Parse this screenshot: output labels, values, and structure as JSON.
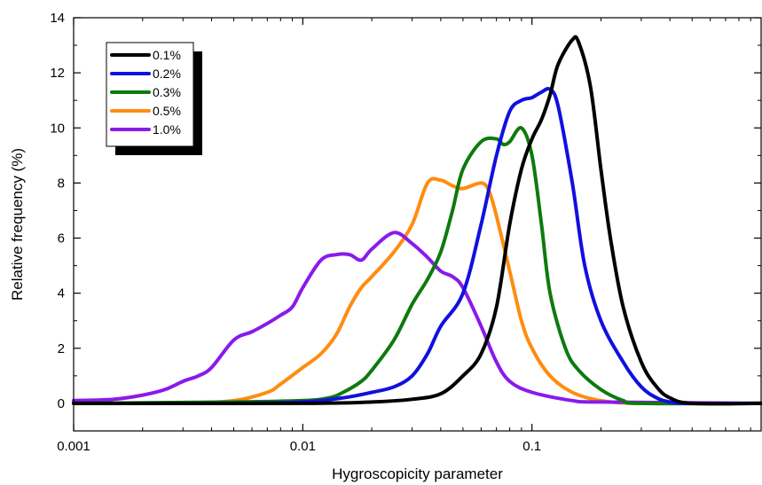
{
  "chart_data": {
    "type": "line",
    "xlabel": "Hygroscopicity parameter",
    "ylabel": "Relative frequency (%)",
    "xscale": "log",
    "xlim": [
      0.001,
      1
    ],
    "ylim": [
      -1,
      14
    ],
    "x_ticks": [
      {
        "value": 0.001,
        "label": "0.001"
      },
      {
        "value": 0.01,
        "label": "0.01"
      },
      {
        "value": 0.1,
        "label": "0.1"
      }
    ],
    "y_ticks": [
      {
        "value": 0,
        "label": "0"
      },
      {
        "value": 2,
        "label": "2"
      },
      {
        "value": 4,
        "label": "4"
      },
      {
        "value": 6,
        "label": "6"
      },
      {
        "value": 8,
        "label": "8"
      },
      {
        "value": 10,
        "label": "10"
      },
      {
        "value": 12,
        "label": "12"
      },
      {
        "value": 14,
        "label": "14"
      }
    ],
    "grid": false,
    "legend_position": "top-left",
    "series": [
      {
        "name": "0.1%",
        "color": "#000000",
        "points": [
          [
            0.001,
            0
          ],
          [
            0.01,
            0
          ],
          [
            0.02,
            0.05
          ],
          [
            0.03,
            0.15
          ],
          [
            0.04,
            0.35
          ],
          [
            0.05,
            1.0
          ],
          [
            0.06,
            1.8
          ],
          [
            0.07,
            3.5
          ],
          [
            0.08,
            6.5
          ],
          [
            0.09,
            8.5
          ],
          [
            0.1,
            9.6
          ],
          [
            0.11,
            10.3
          ],
          [
            0.12,
            11.2
          ],
          [
            0.13,
            12.3
          ],
          [
            0.15,
            13.2
          ],
          [
            0.16,
            13.1
          ],
          [
            0.18,
            11.5
          ],
          [
            0.2,
            8.5
          ],
          [
            0.22,
            6.0
          ],
          [
            0.25,
            3.5
          ],
          [
            0.3,
            1.5
          ],
          [
            0.35,
            0.6
          ],
          [
            0.4,
            0.2
          ],
          [
            0.5,
            0
          ],
          [
            1,
            0
          ]
        ]
      },
      {
        "name": "0.2%",
        "color": "#1010e0",
        "points": [
          [
            0.001,
            0
          ],
          [
            0.005,
            0
          ],
          [
            0.01,
            0.05
          ],
          [
            0.015,
            0.2
          ],
          [
            0.02,
            0.4
          ],
          [
            0.025,
            0.6
          ],
          [
            0.03,
            1.0
          ],
          [
            0.035,
            1.8
          ],
          [
            0.04,
            2.8
          ],
          [
            0.05,
            4.0
          ],
          [
            0.06,
            6.5
          ],
          [
            0.07,
            9.0
          ],
          [
            0.08,
            10.6
          ],
          [
            0.09,
            11.0
          ],
          [
            0.1,
            11.1
          ],
          [
            0.11,
            11.3
          ],
          [
            0.12,
            11.4
          ],
          [
            0.13,
            10.8
          ],
          [
            0.15,
            8.0
          ],
          [
            0.17,
            5.0
          ],
          [
            0.2,
            3.0
          ],
          [
            0.25,
            1.5
          ],
          [
            0.3,
            0.6
          ],
          [
            0.35,
            0.2
          ],
          [
            0.4,
            0.05
          ],
          [
            0.5,
            0
          ],
          [
            1,
            0
          ]
        ]
      },
      {
        "name": "0.3%",
        "color": "#0e7a0e",
        "points": [
          [
            0.001,
            0
          ],
          [
            0.005,
            0.05
          ],
          [
            0.01,
            0.1
          ],
          [
            0.013,
            0.2
          ],
          [
            0.015,
            0.4
          ],
          [
            0.018,
            0.8
          ],
          [
            0.02,
            1.2
          ],
          [
            0.025,
            2.3
          ],
          [
            0.03,
            3.6
          ],
          [
            0.035,
            4.5
          ],
          [
            0.04,
            5.5
          ],
          [
            0.045,
            7.0
          ],
          [
            0.05,
            8.5
          ],
          [
            0.06,
            9.5
          ],
          [
            0.07,
            9.6
          ],
          [
            0.075,
            9.4
          ],
          [
            0.08,
            9.5
          ],
          [
            0.09,
            10.0
          ],
          [
            0.1,
            9.0
          ],
          [
            0.11,
            6.5
          ],
          [
            0.12,
            4.0
          ],
          [
            0.14,
            2.0
          ],
          [
            0.16,
            1.2
          ],
          [
            0.2,
            0.5
          ],
          [
            0.25,
            0.1
          ],
          [
            0.3,
            0
          ],
          [
            1,
            0
          ]
        ]
      },
      {
        "name": "0.5%",
        "color": "#ff8c10",
        "points": [
          [
            0.001,
            0
          ],
          [
            0.003,
            0.02
          ],
          [
            0.005,
            0.1
          ],
          [
            0.007,
            0.4
          ],
          [
            0.008,
            0.7
          ],
          [
            0.01,
            1.3
          ],
          [
            0.012,
            1.8
          ],
          [
            0.014,
            2.5
          ],
          [
            0.016,
            3.5
          ],
          [
            0.018,
            4.2
          ],
          [
            0.02,
            4.6
          ],
          [
            0.025,
            5.5
          ],
          [
            0.03,
            6.5
          ],
          [
            0.035,
            8.0
          ],
          [
            0.04,
            8.1
          ],
          [
            0.045,
            7.9
          ],
          [
            0.05,
            7.8
          ],
          [
            0.06,
            8.0
          ],
          [
            0.065,
            7.7
          ],
          [
            0.07,
            6.8
          ],
          [
            0.08,
            4.8
          ],
          [
            0.09,
            3.0
          ],
          [
            0.1,
            2.0
          ],
          [
            0.12,
            1.0
          ],
          [
            0.15,
            0.4
          ],
          [
            0.2,
            0.1
          ],
          [
            0.3,
            0
          ],
          [
            1,
            0
          ]
        ]
      },
      {
        "name": "1.0%",
        "color": "#8a1aea",
        "points": [
          [
            0.001,
            0.1
          ],
          [
            0.0015,
            0.15
          ],
          [
            0.002,
            0.3
          ],
          [
            0.0025,
            0.5
          ],
          [
            0.003,
            0.8
          ],
          [
            0.0035,
            1.0
          ],
          [
            0.004,
            1.3
          ],
          [
            0.005,
            2.3
          ],
          [
            0.006,
            2.6
          ],
          [
            0.007,
            2.9
          ],
          [
            0.008,
            3.2
          ],
          [
            0.009,
            3.5
          ],
          [
            0.01,
            4.2
          ],
          [
            0.012,
            5.2
          ],
          [
            0.014,
            5.4
          ],
          [
            0.016,
            5.4
          ],
          [
            0.018,
            5.2
          ],
          [
            0.02,
            5.6
          ],
          [
            0.025,
            6.2
          ],
          [
            0.03,
            5.8
          ],
          [
            0.035,
            5.3
          ],
          [
            0.04,
            4.8
          ],
          [
            0.045,
            4.6
          ],
          [
            0.05,
            4.2
          ],
          [
            0.06,
            2.8
          ],
          [
            0.07,
            1.5
          ],
          [
            0.08,
            0.8
          ],
          [
            0.1,
            0.4
          ],
          [
            0.15,
            0.1
          ],
          [
            0.2,
            0.05
          ],
          [
            1,
            0
          ]
        ]
      }
    ]
  }
}
